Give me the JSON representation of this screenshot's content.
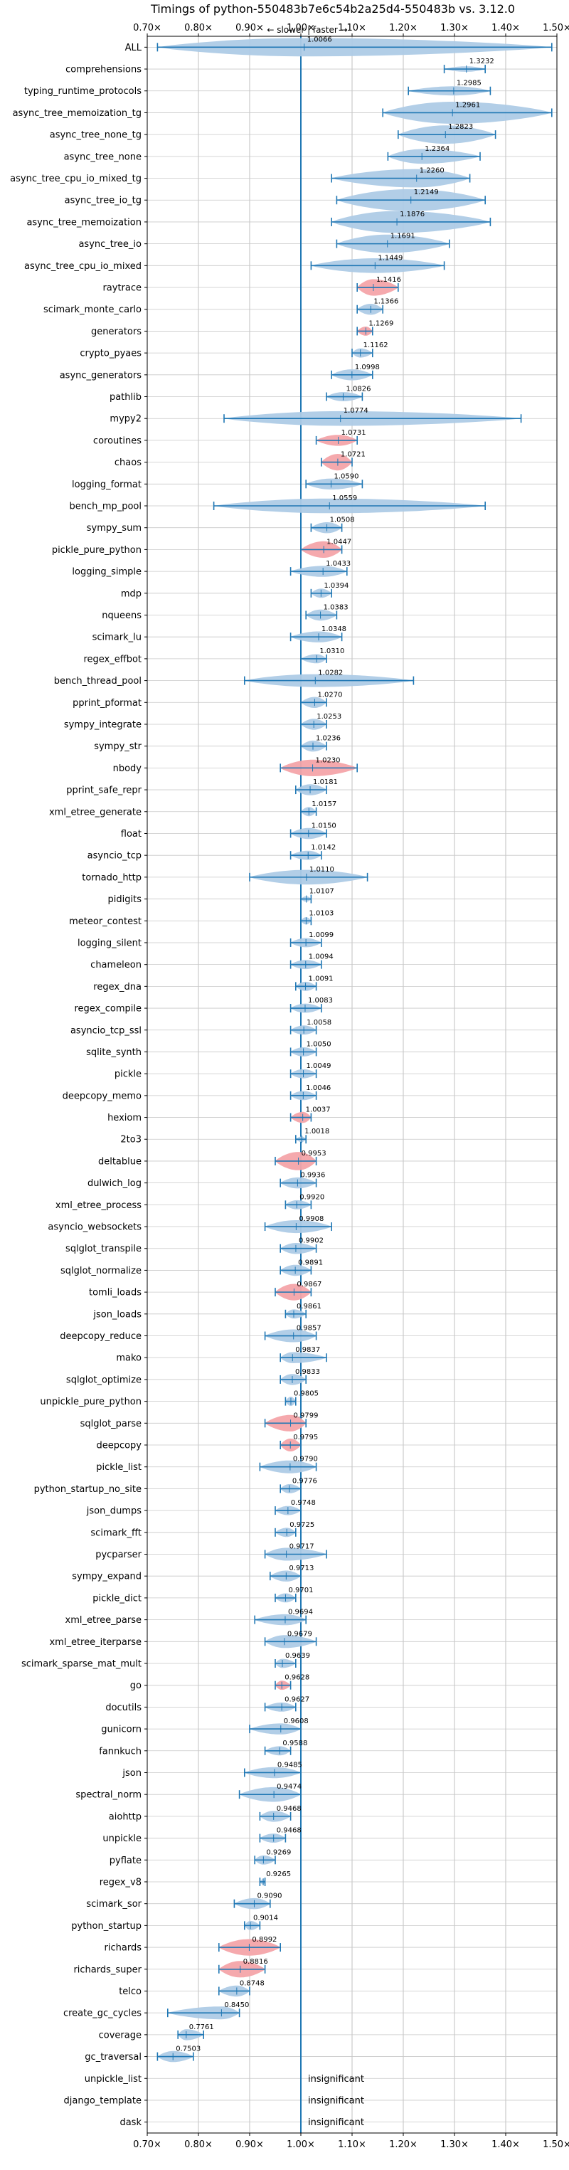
{
  "chart_data": {
    "type": "violin",
    "title": "Timings of python-550483b7e6c54b2a25d4-550483b vs. 3.12.0",
    "annotation": "← slower | faster →",
    "xlim": [
      0.7,
      1.5
    ],
    "xticks": [
      "0.70×",
      "0.80×",
      "0.90×",
      "1.00×",
      "1.10×",
      "1.20×",
      "1.30×",
      "1.40×",
      "1.50×"
    ],
    "xtick_values": [
      0.7,
      0.8,
      0.9,
      1.0,
      1.1,
      1.2,
      1.3,
      1.4,
      1.5
    ],
    "reference_line": 1.0,
    "grid": true,
    "colors": {
      "normal": "#aecbe6",
      "highlight": "#f4a4a9",
      "line": "#1f77b4"
    },
    "insignificant_label": "insignificant",
    "benchmarks": [
      {
        "name": "ALL",
        "value": "1.0066",
        "median": 1.0066,
        "min": 0.72,
        "max": 1.49,
        "width": 0.1,
        "highlight": false
      },
      {
        "name": "comprehensions",
        "value": "1.3232",
        "median": 1.3232,
        "min": 1.28,
        "max": 1.36,
        "width": 0.03,
        "highlight": false
      },
      {
        "name": "typing_runtime_protocols",
        "value": "1.2985",
        "median": 1.2985,
        "min": 1.21,
        "max": 1.37,
        "width": 0.05,
        "highlight": false
      },
      {
        "name": "async_tree_memoization_tg",
        "value": "1.2961",
        "median": 1.2961,
        "min": 1.16,
        "max": 1.49,
        "width": 0.12,
        "highlight": false
      },
      {
        "name": "async_tree_none_tg",
        "value": "1.2823",
        "median": 1.2823,
        "min": 1.19,
        "max": 1.38,
        "width": 0.1,
        "highlight": false
      },
      {
        "name": "async_tree_none",
        "value": "1.2364",
        "median": 1.2364,
        "min": 1.17,
        "max": 1.35,
        "width": 0.08,
        "highlight": false
      },
      {
        "name": "async_tree_cpu_io_mixed_tg",
        "value": "1.2260",
        "median": 1.226,
        "min": 1.06,
        "max": 1.33,
        "width": 0.1,
        "highlight": false
      },
      {
        "name": "async_tree_io_tg",
        "value": "1.2149",
        "median": 1.2149,
        "min": 1.07,
        "max": 1.36,
        "width": 0.12,
        "highlight": false
      },
      {
        "name": "async_tree_memoization",
        "value": "1.1876",
        "median": 1.1876,
        "min": 1.06,
        "max": 1.37,
        "width": 0.12,
        "highlight": false
      },
      {
        "name": "async_tree_io",
        "value": "1.1691",
        "median": 1.1691,
        "min": 1.07,
        "max": 1.29,
        "width": 0.1,
        "highlight": false
      },
      {
        "name": "async_tree_cpu_io_mixed",
        "value": "1.1449",
        "median": 1.1449,
        "min": 1.02,
        "max": 1.28,
        "width": 0.08,
        "highlight": false
      },
      {
        "name": "raytrace",
        "value": "1.1416",
        "median": 1.1416,
        "min": 1.11,
        "max": 1.19,
        "width": 0.09,
        "highlight": true
      },
      {
        "name": "scimark_monte_carlo",
        "value": "1.1366",
        "median": 1.1366,
        "min": 1.11,
        "max": 1.16,
        "width": 0.06,
        "highlight": false
      },
      {
        "name": "generators",
        "value": "1.1269",
        "median": 1.1269,
        "min": 1.11,
        "max": 1.14,
        "width": 0.05,
        "highlight": true
      },
      {
        "name": "crypto_pyaes",
        "value": "1.1162",
        "median": 1.1162,
        "min": 1.1,
        "max": 1.14,
        "width": 0.05,
        "highlight": false
      },
      {
        "name": "async_generators",
        "value": "1.0998",
        "median": 1.0998,
        "min": 1.06,
        "max": 1.14,
        "width": 0.06,
        "highlight": false
      },
      {
        "name": "pathlib",
        "value": "1.0826",
        "median": 1.0826,
        "min": 1.05,
        "max": 1.12,
        "width": 0.05,
        "highlight": false
      },
      {
        "name": "mypy2",
        "value": "1.0774",
        "median": 1.0774,
        "min": 0.85,
        "max": 1.43,
        "width": 0.08,
        "highlight": false
      },
      {
        "name": "coroutines",
        "value": "1.0731",
        "median": 1.0731,
        "min": 1.03,
        "max": 1.11,
        "width": 0.06,
        "highlight": true
      },
      {
        "name": "chaos",
        "value": "1.0721",
        "median": 1.0721,
        "min": 1.04,
        "max": 1.1,
        "width": 0.09,
        "highlight": true
      },
      {
        "name": "logging_format",
        "value": "1.0590",
        "median": 1.059,
        "min": 1.01,
        "max": 1.12,
        "width": 0.06,
        "highlight": false
      },
      {
        "name": "bench_mp_pool",
        "value": "1.0559",
        "median": 1.0559,
        "min": 0.83,
        "max": 1.36,
        "width": 0.08,
        "highlight": false
      },
      {
        "name": "sympy_sum",
        "value": "1.0508",
        "median": 1.0508,
        "min": 1.02,
        "max": 1.08,
        "width": 0.06,
        "highlight": false
      },
      {
        "name": "pickle_pure_python",
        "value": "1.0447",
        "median": 1.0447,
        "min": 1.0,
        "max": 1.08,
        "width": 0.09,
        "highlight": true
      },
      {
        "name": "logging_simple",
        "value": "1.0433",
        "median": 1.0433,
        "min": 0.98,
        "max": 1.09,
        "width": 0.06,
        "highlight": false
      },
      {
        "name": "mdp",
        "value": "1.0394",
        "median": 1.0394,
        "min": 1.02,
        "max": 1.06,
        "width": 0.05,
        "highlight": false
      },
      {
        "name": "nqueens",
        "value": "1.0383",
        "median": 1.0383,
        "min": 1.01,
        "max": 1.07,
        "width": 0.06,
        "highlight": false
      },
      {
        "name": "scimark_lu",
        "value": "1.0348",
        "median": 1.0348,
        "min": 0.98,
        "max": 1.08,
        "width": 0.06,
        "highlight": false
      },
      {
        "name": "regex_effbot",
        "value": "1.0310",
        "median": 1.031,
        "min": 1.0,
        "max": 1.05,
        "width": 0.05,
        "highlight": false
      },
      {
        "name": "bench_thread_pool",
        "value": "1.0282",
        "median": 1.0282,
        "min": 0.89,
        "max": 1.22,
        "width": 0.07,
        "highlight": false
      },
      {
        "name": "pprint_pformat",
        "value": "1.0270",
        "median": 1.027,
        "min": 1.0,
        "max": 1.05,
        "width": 0.06,
        "highlight": false
      },
      {
        "name": "sympy_integrate",
        "value": "1.0253",
        "median": 1.0253,
        "min": 1.0,
        "max": 1.05,
        "width": 0.06,
        "highlight": false
      },
      {
        "name": "sympy_str",
        "value": "1.0236",
        "median": 1.0236,
        "min": 1.0,
        "max": 1.05,
        "width": 0.06,
        "highlight": false
      },
      {
        "name": "nbody",
        "value": "1.0230",
        "median": 1.023,
        "min": 0.96,
        "max": 1.11,
        "width": 0.09,
        "highlight": true
      },
      {
        "name": "pprint_safe_repr",
        "value": "1.0181",
        "median": 1.0181,
        "min": 0.99,
        "max": 1.05,
        "width": 0.06,
        "highlight": false
      },
      {
        "name": "xml_etree_generate",
        "value": "1.0157",
        "median": 1.0157,
        "min": 1.0,
        "max": 1.03,
        "width": 0.05,
        "highlight": false
      },
      {
        "name": "float",
        "value": "1.0150",
        "median": 1.015,
        "min": 0.98,
        "max": 1.05,
        "width": 0.06,
        "highlight": false
      },
      {
        "name": "asyncio_tcp",
        "value": "1.0142",
        "median": 1.0142,
        "min": 0.98,
        "max": 1.04,
        "width": 0.05,
        "highlight": false
      },
      {
        "name": "tornado_http",
        "value": "1.0110",
        "median": 1.011,
        "min": 0.9,
        "max": 1.13,
        "width": 0.08,
        "highlight": false
      },
      {
        "name": "pidigits",
        "value": "1.0107",
        "median": 1.0107,
        "min": 1.0,
        "max": 1.02,
        "width": 0.03,
        "highlight": false
      },
      {
        "name": "meteor_contest",
        "value": "1.0103",
        "median": 1.0103,
        "min": 1.0,
        "max": 1.02,
        "width": 0.04,
        "highlight": false
      },
      {
        "name": "logging_silent",
        "value": "1.0099",
        "median": 1.0099,
        "min": 0.98,
        "max": 1.04,
        "width": 0.05,
        "highlight": false
      },
      {
        "name": "chameleon",
        "value": "1.0094",
        "median": 1.0094,
        "min": 0.98,
        "max": 1.04,
        "width": 0.05,
        "highlight": false
      },
      {
        "name": "regex_dna",
        "value": "1.0091",
        "median": 1.0091,
        "min": 0.99,
        "max": 1.03,
        "width": 0.05,
        "highlight": false
      },
      {
        "name": "regex_compile",
        "value": "1.0083",
        "median": 1.0083,
        "min": 0.98,
        "max": 1.04,
        "width": 0.05,
        "highlight": false
      },
      {
        "name": "asyncio_tcp_ssl",
        "value": "1.0058",
        "median": 1.0058,
        "min": 0.98,
        "max": 1.03,
        "width": 0.05,
        "highlight": false
      },
      {
        "name": "sqlite_synth",
        "value": "1.0050",
        "median": 1.005,
        "min": 0.98,
        "max": 1.03,
        "width": 0.05,
        "highlight": false
      },
      {
        "name": "pickle",
        "value": "1.0049",
        "median": 1.0049,
        "min": 0.98,
        "max": 1.03,
        "width": 0.05,
        "highlight": false
      },
      {
        "name": "deepcopy_memo",
        "value": "1.0046",
        "median": 1.0046,
        "min": 0.98,
        "max": 1.03,
        "width": 0.05,
        "highlight": false
      },
      {
        "name": "hexiom",
        "value": "1.0037",
        "median": 1.0037,
        "min": 0.98,
        "max": 1.02,
        "width": 0.06,
        "highlight": true
      },
      {
        "name": "2to3",
        "value": "1.0018",
        "median": 1.0018,
        "min": 0.99,
        "max": 1.01,
        "width": 0.03,
        "highlight": false
      },
      {
        "name": "deltablue",
        "value": "0.9953",
        "median": 0.9953,
        "min": 0.95,
        "max": 1.03,
        "width": 0.1,
        "highlight": true
      },
      {
        "name": "dulwich_log",
        "value": "0.9936",
        "median": 0.9936,
        "min": 0.96,
        "max": 1.03,
        "width": 0.06,
        "highlight": false
      },
      {
        "name": "xml_etree_process",
        "value": "0.9920",
        "median": 0.992,
        "min": 0.97,
        "max": 1.02,
        "width": 0.05,
        "highlight": false
      },
      {
        "name": "asyncio_websockets",
        "value": "0.9908",
        "median": 0.9908,
        "min": 0.93,
        "max": 1.06,
        "width": 0.07,
        "highlight": false
      },
      {
        "name": "sqlglot_transpile",
        "value": "0.9902",
        "median": 0.9902,
        "min": 0.96,
        "max": 1.03,
        "width": 0.06,
        "highlight": false
      },
      {
        "name": "sqlglot_normalize",
        "value": "0.9891",
        "median": 0.9891,
        "min": 0.96,
        "max": 1.02,
        "width": 0.06,
        "highlight": false
      },
      {
        "name": "tomli_loads",
        "value": "0.9867",
        "median": 0.9867,
        "min": 0.95,
        "max": 1.02,
        "width": 0.09,
        "highlight": true
      },
      {
        "name": "json_loads",
        "value": "0.9861",
        "median": 0.9861,
        "min": 0.97,
        "max": 1.01,
        "width": 0.05,
        "highlight": false
      },
      {
        "name": "deepcopy_reduce",
        "value": "0.9857",
        "median": 0.9857,
        "min": 0.93,
        "max": 1.03,
        "width": 0.07,
        "highlight": false
      },
      {
        "name": "mako",
        "value": "0.9837",
        "median": 0.9837,
        "min": 0.96,
        "max": 1.05,
        "width": 0.06,
        "highlight": false
      },
      {
        "name": "sqlglot_optimize",
        "value": "0.9833",
        "median": 0.9833,
        "min": 0.96,
        "max": 1.01,
        "width": 0.06,
        "highlight": false
      },
      {
        "name": "unpickle_pure_python",
        "value": "0.9805",
        "median": 0.9805,
        "min": 0.97,
        "max": 0.99,
        "width": 0.05,
        "highlight": false
      },
      {
        "name": "sqlglot_parse",
        "value": "0.9799",
        "median": 0.9799,
        "min": 0.93,
        "max": 1.01,
        "width": 0.09,
        "highlight": true
      },
      {
        "name": "deepcopy",
        "value": "0.9795",
        "median": 0.9795,
        "min": 0.96,
        "max": 1.0,
        "width": 0.07,
        "highlight": true
      },
      {
        "name": "pickle_list",
        "value": "0.9790",
        "median": 0.979,
        "min": 0.92,
        "max": 1.03,
        "width": 0.07,
        "highlight": false
      },
      {
        "name": "python_startup_no_site",
        "value": "0.9776",
        "median": 0.9776,
        "min": 0.96,
        "max": 1.0,
        "width": 0.05,
        "highlight": false
      },
      {
        "name": "json_dumps",
        "value": "0.9748",
        "median": 0.9748,
        "min": 0.95,
        "max": 1.0,
        "width": 0.05,
        "highlight": false
      },
      {
        "name": "scimark_fft",
        "value": "0.9725",
        "median": 0.9725,
        "min": 0.95,
        "max": 0.99,
        "width": 0.05,
        "highlight": false
      },
      {
        "name": "pycparser",
        "value": "0.9717",
        "median": 0.9717,
        "min": 0.93,
        "max": 1.05,
        "width": 0.07,
        "highlight": false
      },
      {
        "name": "sympy_expand",
        "value": "0.9713",
        "median": 0.9713,
        "min": 0.94,
        "max": 1.0,
        "width": 0.06,
        "highlight": false
      },
      {
        "name": "pickle_dict",
        "value": "0.9701",
        "median": 0.9701,
        "min": 0.95,
        "max": 0.99,
        "width": 0.05,
        "highlight": false
      },
      {
        "name": "xml_etree_parse",
        "value": "0.9694",
        "median": 0.9694,
        "min": 0.91,
        "max": 1.01,
        "width": 0.06,
        "highlight": false
      },
      {
        "name": "xml_etree_iterparse",
        "value": "0.9679",
        "median": 0.9679,
        "min": 0.93,
        "max": 1.03,
        "width": 0.07,
        "highlight": false
      },
      {
        "name": "scimark_sparse_mat_mult",
        "value": "0.9639",
        "median": 0.9639,
        "min": 0.95,
        "max": 0.99,
        "width": 0.05,
        "highlight": false
      },
      {
        "name": "go",
        "value": "0.9628",
        "median": 0.9628,
        "min": 0.95,
        "max": 0.98,
        "width": 0.05,
        "highlight": true
      },
      {
        "name": "docutils",
        "value": "0.9627",
        "median": 0.9627,
        "min": 0.93,
        "max": 0.99,
        "width": 0.05,
        "highlight": false
      },
      {
        "name": "gunicorn",
        "value": "0.9608",
        "median": 0.9608,
        "min": 0.9,
        "max": 1.0,
        "width": 0.06,
        "highlight": false
      },
      {
        "name": "fannkuch",
        "value": "0.9588",
        "median": 0.9588,
        "min": 0.93,
        "max": 0.98,
        "width": 0.05,
        "highlight": false
      },
      {
        "name": "json",
        "value": "0.9485",
        "median": 0.9485,
        "min": 0.89,
        "max": 1.0,
        "width": 0.06,
        "highlight": false
      },
      {
        "name": "spectral_norm",
        "value": "0.9474",
        "median": 0.9474,
        "min": 0.88,
        "max": 1.0,
        "width": 0.08,
        "highlight": false
      },
      {
        "name": "aiohttp",
        "value": "0.9468",
        "median": 0.9468,
        "min": 0.92,
        "max": 0.98,
        "width": 0.06,
        "highlight": false
      },
      {
        "name": "unpickle",
        "value": "0.9468",
        "median": 0.9468,
        "min": 0.92,
        "max": 0.97,
        "width": 0.05,
        "highlight": false
      },
      {
        "name": "pyflate",
        "value": "0.9269",
        "median": 0.9269,
        "min": 0.91,
        "max": 0.95,
        "width": 0.05,
        "highlight": false
      },
      {
        "name": "regex_v8",
        "value": "0.9265",
        "median": 0.9265,
        "min": 0.92,
        "max": 0.93,
        "width": 0.03,
        "highlight": false
      },
      {
        "name": "scimark_sor",
        "value": "0.9090",
        "median": 0.909,
        "min": 0.87,
        "max": 0.94,
        "width": 0.06,
        "highlight": false
      },
      {
        "name": "python_startup",
        "value": "0.9014",
        "median": 0.9014,
        "min": 0.89,
        "max": 0.92,
        "width": 0.05,
        "highlight": false
      },
      {
        "name": "richards",
        "value": "0.8992",
        "median": 0.8992,
        "min": 0.84,
        "max": 0.96,
        "width": 0.09,
        "highlight": true
      },
      {
        "name": "richards_super",
        "value": "0.8816",
        "median": 0.8816,
        "min": 0.84,
        "max": 0.93,
        "width": 0.09,
        "highlight": true
      },
      {
        "name": "telco",
        "value": "0.8748",
        "median": 0.8748,
        "min": 0.84,
        "max": 0.9,
        "width": 0.06,
        "highlight": false
      },
      {
        "name": "create_gc_cycles",
        "value": "0.8450",
        "median": 0.845,
        "min": 0.74,
        "max": 0.88,
        "width": 0.07,
        "highlight": false
      },
      {
        "name": "coverage",
        "value": "0.7761",
        "median": 0.7761,
        "min": 0.76,
        "max": 0.81,
        "width": 0.06,
        "highlight": false
      },
      {
        "name": "gc_traversal",
        "value": "0.7503",
        "median": 0.7503,
        "min": 0.72,
        "max": 0.79,
        "width": 0.06,
        "highlight": false
      },
      {
        "name": "unpickle_list",
        "value": null,
        "insignificant": true
      },
      {
        "name": "django_template",
        "value": null,
        "insignificant": true
      },
      {
        "name": "dask",
        "value": null,
        "insignificant": true
      }
    ]
  }
}
